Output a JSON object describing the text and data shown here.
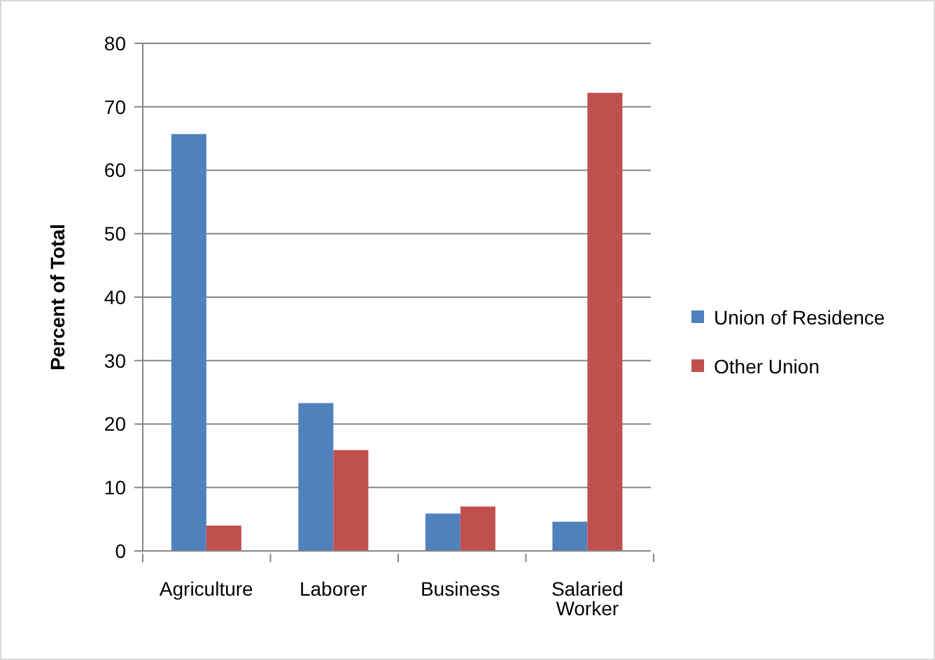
{
  "chart_data": {
    "type": "bar",
    "ylabel": "Percent of Total",
    "categories": [
      "Agriculture",
      "Laborer",
      "Business",
      "Salaried Worker"
    ],
    "series": [
      {
        "name": "Union of Residence",
        "color": "#4f81bd",
        "values": [
          65.7,
          23.3,
          5.9,
          4.6
        ]
      },
      {
        "name": "Other Union",
        "color": "#c0504d",
        "values": [
          4.0,
          15.9,
          7.0,
          72.2
        ]
      }
    ],
    "ylim": [
      0,
      80
    ],
    "yticks": [
      0,
      10,
      20,
      30,
      40,
      50,
      60,
      70,
      80
    ],
    "grid": "y",
    "legend": "right"
  }
}
